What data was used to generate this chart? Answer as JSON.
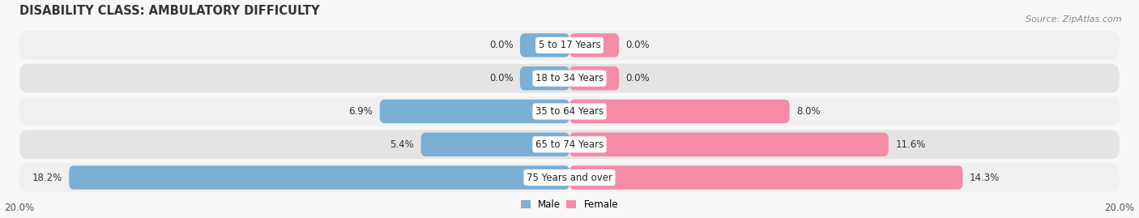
{
  "title": "DISABILITY CLASS: AMBULATORY DIFFICULTY",
  "source": "Source: ZipAtlas.com",
  "categories": [
    "5 to 17 Years",
    "18 to 34 Years",
    "35 to 64 Years",
    "65 to 74 Years",
    "75 Years and over"
  ],
  "male_values": [
    0.0,
    0.0,
    6.9,
    5.4,
    18.2
  ],
  "female_values": [
    0.0,
    0.0,
    8.0,
    11.6,
    14.3
  ],
  "max_val": 20.0,
  "male_color": "#7bafd4",
  "female_color": "#f48ca7",
  "row_bg_color_odd": "#f0f0f0",
  "row_bg_color_even": "#e4e4e4",
  "label_bg_color": "#ffffff",
  "title_fontsize": 10.5,
  "label_fontsize": 8.5,
  "value_fontsize": 8.5,
  "tick_fontsize": 8.5,
  "source_fontsize": 8,
  "legend_fontsize": 8.5
}
